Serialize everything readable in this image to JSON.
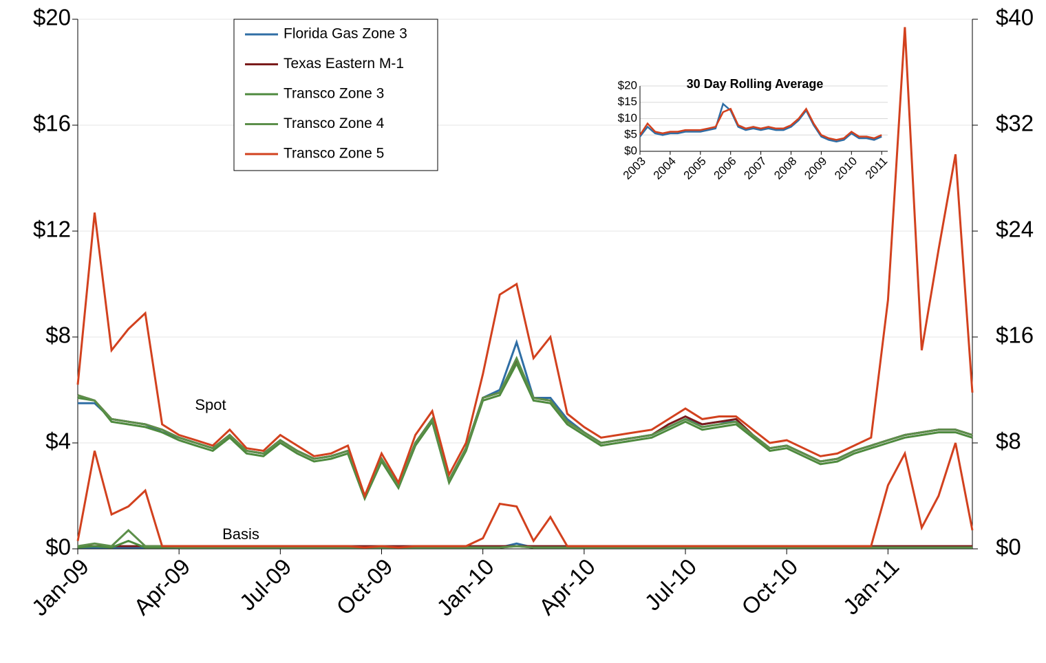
{
  "chart_data": {
    "type": "line",
    "x": [
      0,
      0.5,
      1,
      1.5,
      2,
      2.5,
      3,
      3.5,
      4,
      4.5,
      5,
      5.5,
      6,
      6.5,
      7,
      7.5,
      8,
      8.5,
      9,
      9.5,
      10,
      10.5,
      11,
      11.5,
      12,
      12.5,
      13,
      13.5,
      14,
      14.5,
      15,
      15.5,
      16,
      16.5,
      17,
      17.5,
      18,
      18.5,
      19,
      19.5,
      20,
      20.5,
      21,
      21.5,
      22,
      22.5,
      23,
      23.5,
      24,
      24.5,
      25,
      25.5,
      26,
      26.5
    ],
    "xlim": [
      0,
      26.5
    ],
    "xticks": [
      {
        "value": 0,
        "label": "Jan-09"
      },
      {
        "value": 3,
        "label": "Apr-09"
      },
      {
        "value": 6,
        "label": "Jul-09"
      },
      {
        "value": 9,
        "label": "Oct-09"
      },
      {
        "value": 12,
        "label": "Jan-10"
      },
      {
        "value": 15,
        "label": "Apr-10"
      },
      {
        "value": 18,
        "label": "Jul-10"
      },
      {
        "value": 21,
        "label": "Oct-10"
      },
      {
        "value": 24,
        "label": "Jan-11"
      }
    ],
    "ylim": [
      0,
      20
    ],
    "yticks": [
      {
        "value": 0,
        "label": "$0"
      },
      {
        "value": 4,
        "label": "$4"
      },
      {
        "value": 8,
        "label": "$8"
      },
      {
        "value": 12,
        "label": "$12"
      },
      {
        "value": 16,
        "label": "$16"
      },
      {
        "value": 20,
        "label": "$20"
      }
    ],
    "y2lim": [
      0,
      40
    ],
    "y2ticks": [
      {
        "value": 0,
        "label": "$0"
      },
      {
        "value": 8,
        "label": "$8"
      },
      {
        "value": 16,
        "label": "$16"
      },
      {
        "value": 24,
        "label": "$24"
      },
      {
        "value": 32,
        "label": "$32"
      },
      {
        "value": 40,
        "label": "$40"
      }
    ],
    "grid": true,
    "annotations": [
      "Spot",
      "Basis"
    ],
    "series": [
      {
        "name": "Florida Gas Zone 3",
        "color": "#2f6ea5",
        "values": [
          5.5,
          5.5,
          4.9,
          4.8,
          4.7,
          4.4,
          4.2,
          4.0,
          3.8,
          4.3,
          3.7,
          3.6,
          4.1,
          3.7,
          3.4,
          3.5,
          3.7,
          2.0,
          3.4,
          2.4,
          4.0,
          4.9,
          2.6,
          3.8,
          5.7,
          6.0,
          7.8,
          5.7,
          5.7,
          4.9,
          4.4,
          4.0,
          4.1,
          4.2,
          4.3,
          4.6,
          4.9,
          4.7,
          4.8,
          4.8,
          4.3,
          3.8,
          3.9,
          3.6,
          3.3,
          3.4,
          3.7,
          3.9,
          4.1,
          4.3,
          4.4,
          4.5,
          4.5,
          4.3
        ],
        "basis": [
          0.05,
          0.05,
          0.05,
          0.05,
          0.05,
          0.05,
          0.05,
          0.05,
          0.05,
          0.05,
          0.05,
          0.05,
          0.05,
          0.05,
          0.05,
          0.05,
          0.05,
          0.05,
          0.05,
          0.05,
          0.05,
          0.05,
          0.05,
          0.05,
          0.05,
          0.05,
          0.2,
          0.05,
          0.05,
          0.05,
          0.05,
          0.05,
          0.05,
          0.05,
          0.05,
          0.05,
          0.05,
          0.05,
          0.05,
          0.05,
          0.05,
          0.05,
          0.05,
          0.05,
          0.05,
          0.05,
          0.05,
          0.05,
          0.05,
          0.05,
          0.05,
          0.05,
          0.05,
          0.05
        ]
      },
      {
        "name": "Texas Eastern M-1",
        "color": "#7a1b1b",
        "values": [
          5.8,
          5.6,
          4.9,
          4.8,
          4.7,
          4.5,
          4.2,
          4.0,
          3.8,
          4.3,
          3.7,
          3.6,
          4.1,
          3.7,
          3.4,
          3.5,
          3.7,
          2.0,
          3.4,
          2.4,
          4.0,
          4.9,
          2.6,
          3.8,
          5.7,
          5.9,
          7.1,
          5.7,
          5.6,
          4.8,
          4.4,
          4.0,
          4.1,
          4.2,
          4.3,
          4.7,
          5.0,
          4.7,
          4.8,
          4.9,
          4.3,
          3.8,
          3.9,
          3.6,
          3.3,
          3.4,
          3.7,
          3.9,
          4.1,
          4.3,
          4.4,
          4.5,
          4.5,
          4.3
        ],
        "basis": [
          0.1,
          0.1,
          0.1,
          0.1,
          0.1,
          0.1,
          0.1,
          0.1,
          0.1,
          0.1,
          0.1,
          0.1,
          0.1,
          0.1,
          0.1,
          0.1,
          0.1,
          0.1,
          0.1,
          0.1,
          0.1,
          0.1,
          0.1,
          0.1,
          0.1,
          0.1,
          0.1,
          0.1,
          0.1,
          0.1,
          0.1,
          0.1,
          0.1,
          0.1,
          0.1,
          0.1,
          0.1,
          0.1,
          0.1,
          0.1,
          0.1,
          0.1,
          0.1,
          0.1,
          0.1,
          0.1,
          0.1,
          0.1,
          0.1,
          0.1,
          0.1,
          0.1,
          0.1,
          0.1
        ]
      },
      {
        "name": "Transco Zone 3",
        "color": "#4e8a3e",
        "values": [
          5.7,
          5.6,
          4.8,
          4.7,
          4.6,
          4.4,
          4.1,
          3.9,
          3.7,
          4.2,
          3.6,
          3.5,
          4.0,
          3.6,
          3.3,
          3.4,
          3.6,
          1.9,
          3.3,
          2.3,
          3.9,
          4.8,
          2.5,
          3.7,
          5.6,
          5.8,
          7.0,
          5.6,
          5.5,
          4.7,
          4.3,
          3.9,
          4.0,
          4.1,
          4.2,
          4.5,
          4.8,
          4.5,
          4.6,
          4.7,
          4.2,
          3.7,
          3.8,
          3.5,
          3.2,
          3.3,
          3.6,
          3.8,
          4.0,
          4.2,
          4.3,
          4.4,
          4.4,
          4.2
        ],
        "basis": [
          0.05,
          0.1,
          0.05,
          0.3,
          0.05,
          0.05,
          0.05,
          0.05,
          0.05,
          0.05,
          0.05,
          0.05,
          0.05,
          0.05,
          0.05,
          0.05,
          0.05,
          0.05,
          0.05,
          0.05,
          0.05,
          0.05,
          0.05,
          0.05,
          0.05,
          0.05,
          0.1,
          0.05,
          0.05,
          0.05,
          0.05,
          0.05,
          0.05,
          0.05,
          0.05,
          0.05,
          0.05,
          0.05,
          0.05,
          0.05,
          0.05,
          0.05,
          0.05,
          0.05,
          0.05,
          0.05,
          0.05,
          0.05,
          0.05,
          0.05,
          0.05,
          0.05,
          0.05,
          0.05
        ]
      },
      {
        "name": "Transco Zone 4",
        "color": "#5c8f4a",
        "values": [
          5.8,
          5.6,
          4.9,
          4.8,
          4.7,
          4.5,
          4.2,
          4.0,
          3.8,
          4.3,
          3.7,
          3.6,
          4.1,
          3.7,
          3.4,
          3.5,
          3.7,
          2.0,
          3.4,
          2.4,
          4.0,
          4.9,
          2.6,
          3.8,
          5.7,
          5.9,
          7.2,
          5.7,
          5.6,
          4.8,
          4.4,
          4.0,
          4.1,
          4.2,
          4.3,
          4.6,
          4.9,
          4.6,
          4.7,
          4.8,
          4.3,
          3.8,
          3.9,
          3.6,
          3.3,
          3.4,
          3.7,
          3.9,
          4.1,
          4.3,
          4.4,
          4.5,
          4.5,
          4.3
        ],
        "basis": [
          0.1,
          0.2,
          0.1,
          0.7,
          0.1,
          0.1,
          0.05,
          0.05,
          0.05,
          0.05,
          0.05,
          0.05,
          0.05,
          0.05,
          0.05,
          0.05,
          0.05,
          0.05,
          0.05,
          0.05,
          0.05,
          0.05,
          0.05,
          0.05,
          0.05,
          0.05,
          0.1,
          0.05,
          0.05,
          0.05,
          0.05,
          0.05,
          0.05,
          0.05,
          0.05,
          0.05,
          0.05,
          0.05,
          0.05,
          0.05,
          0.05,
          0.05,
          0.05,
          0.05,
          0.05,
          0.05,
          0.05,
          0.05,
          0.05,
          0.05,
          0.05,
          0.05,
          0.05,
          0.05
        ]
      },
      {
        "name": "Transco Zone 5",
        "color": "#d2411e",
        "values": [
          6.2,
          12.7,
          7.5,
          8.3,
          8.9,
          4.7,
          4.3,
          4.1,
          3.9,
          4.5,
          3.8,
          3.7,
          4.3,
          3.9,
          3.5,
          3.6,
          3.9,
          2.0,
          3.6,
          2.5,
          4.3,
          5.2,
          2.8,
          4.0,
          6.6,
          9.6,
          10.0,
          7.2,
          8.0,
          5.1,
          4.6,
          4.2,
          4.3,
          4.4,
          4.5,
          4.9,
          5.3,
          4.9,
          5.0,
          5.0,
          4.5,
          4.0,
          4.1,
          3.8,
          3.5,
          3.6,
          3.9,
          4.2,
          9.4,
          19.7,
          7.5,
          11.3,
          14.9,
          5.9
        ],
        "basis": [
          0.3,
          3.7,
          1.3,
          1.6,
          2.2,
          0.1,
          0.1,
          0.1,
          0.1,
          0.1,
          0.1,
          0.1,
          0.1,
          0.1,
          0.1,
          0.1,
          0.1,
          0.05,
          0.1,
          0.05,
          0.1,
          0.1,
          0.1,
          0.1,
          0.4,
          1.7,
          1.6,
          0.3,
          1.2,
          0.1,
          0.1,
          0.1,
          0.1,
          0.1,
          0.1,
          0.1,
          0.1,
          0.1,
          0.1,
          0.1,
          0.1,
          0.1,
          0.1,
          0.1,
          0.1,
          0.1,
          0.1,
          0.1,
          2.4,
          3.6,
          0.8,
          2.0,
          4.0,
          0.7
        ]
      }
    ],
    "inset": {
      "title": "30 Day Rolling Average",
      "x": [
        2003,
        2003.25,
        2003.5,
        2003.75,
        2004,
        2004.25,
        2004.5,
        2004.75,
        2005,
        2005.25,
        2005.5,
        2005.75,
        2006,
        2006.25,
        2006.5,
        2006.75,
        2007,
        2007.25,
        2007.5,
        2007.75,
        2008,
        2008.25,
        2008.5,
        2008.75,
        2009,
        2009.25,
        2009.5,
        2009.75,
        2010,
        2010.25,
        2010.5,
        2010.75,
        2011
      ],
      "xlim": [
        2003,
        2011.2
      ],
      "xticks": [
        2003,
        2004,
        2005,
        2006,
        2007,
        2008,
        2009,
        2010,
        2011
      ],
      "ylim": [
        0,
        20
      ],
      "yticks": [
        {
          "value": 0,
          "label": "$0"
        },
        {
          "value": 5,
          "label": "$5"
        },
        {
          "value": 10,
          "label": "$10"
        },
        {
          "value": 15,
          "label": "$15"
        },
        {
          "value": 20,
          "label": "$20"
        }
      ],
      "series": [
        {
          "color": "#2f6ea5",
          "values": [
            4.5,
            7.5,
            5.5,
            5.0,
            5.5,
            5.5,
            6.0,
            6.0,
            6.0,
            6.5,
            7.0,
            14.5,
            12.5,
            7.5,
            6.5,
            7.0,
            6.5,
            7.0,
            6.5,
            6.5,
            7.5,
            9.5,
            12.5,
            8.0,
            4.5,
            3.5,
            3.0,
            3.5,
            5.5,
            4.0,
            4.0,
            3.5,
            4.5
          ]
        },
        {
          "color": "#d2411e",
          "values": [
            5.0,
            8.5,
            6.0,
            5.5,
            6.0,
            6.0,
            6.5,
            6.5,
            6.5,
            7.0,
            7.5,
            12.0,
            13.0,
            8.0,
            7.0,
            7.5,
            7.0,
            7.5,
            7.0,
            7.0,
            8.0,
            10.0,
            13.0,
            8.5,
            5.0,
            4.0,
            3.5,
            4.0,
            6.0,
            4.5,
            4.5,
            4.0,
            5.0
          ]
        }
      ]
    }
  }
}
